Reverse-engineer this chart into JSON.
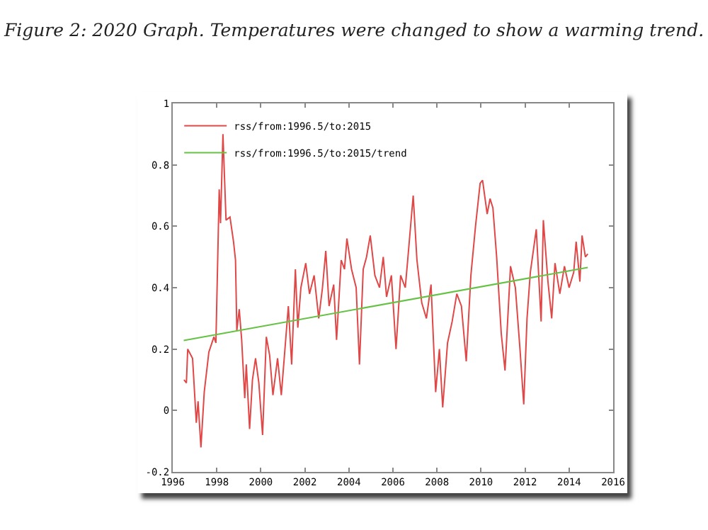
{
  "chart_data": {
    "type": "line",
    "title": "Figure 2: 2020 Graph. Temperatures were changed to show a warming trend.",
    "xlim": [
      1996,
      2016
    ],
    "xticks": [
      1996,
      1998,
      2000,
      2002,
      2004,
      2006,
      2008,
      2010,
      2012,
      2014,
      2016
    ],
    "ylim": [
      -0.2,
      1
    ],
    "yticks": [
      -0.2,
      0,
      0.2,
      0.4,
      0.6,
      0.8,
      1
    ],
    "grid": false,
    "legend": "top left",
    "series": [
      {
        "name": "rss/from:1996.5/to:2015",
        "color": "#e04848",
        "x": [
          1996.51,
          1996.62,
          1996.68,
          1996.9,
          1997.07,
          1997.15,
          1997.28,
          1997.43,
          1997.64,
          1997.87,
          1997.96,
          1998.11,
          1998.17,
          1998.28,
          1998.42,
          1998.6,
          1998.76,
          1998.85,
          1998.91,
          1999.02,
          1999.13,
          1999.27,
          1999.34,
          1999.49,
          1999.62,
          1999.76,
          1999.91,
          2000.08,
          2000.25,
          2000.4,
          2000.55,
          2000.76,
          2000.93,
          2001.25,
          2001.4,
          2001.57,
          2001.68,
          2001.82,
          2002.04,
          2002.21,
          2002.42,
          2002.63,
          2002.8,
          2002.95,
          2003.1,
          2003.31,
          2003.44,
          2003.65,
          2003.8,
          2003.91,
          2004.12,
          2004.33,
          2004.48,
          2004.65,
          2004.8,
          2004.97,
          2005.18,
          2005.39,
          2005.56,
          2005.71,
          2005.93,
          2006.14,
          2006.35,
          2006.56,
          2006.67,
          2006.92,
          2007.09,
          2007.31,
          2007.52,
          2007.73,
          2007.94,
          2008.11,
          2008.26,
          2008.48,
          2008.69,
          2008.9,
          2009.11,
          2009.33,
          2009.54,
          2009.75,
          2009.96,
          2010.07,
          2010.28,
          2010.41,
          2010.54,
          2010.71,
          2010.92,
          2011.09,
          2011.34,
          2011.56,
          2011.77,
          2011.94,
          2012.09,
          2012.24,
          2012.51,
          2012.73,
          2012.83,
          2013.04,
          2013.21,
          2013.36,
          2013.58,
          2013.79,
          2014.0,
          2014.21,
          2014.32,
          2014.49,
          2014.59,
          2014.74,
          2014.85
        ],
        "values": [
          0.1,
          0.09,
          0.2,
          0.17,
          -0.04,
          0.03,
          -0.12,
          0.06,
          0.19,
          0.24,
          0.22,
          0.72,
          0.61,
          0.9,
          0.62,
          0.63,
          0.55,
          0.49,
          0.26,
          0.33,
          0.23,
          0.04,
          0.15,
          -0.06,
          0.1,
          0.17,
          0.09,
          -0.08,
          0.24,
          0.18,
          0.05,
          0.17,
          0.05,
          0.34,
          0.15,
          0.46,
          0.27,
          0.4,
          0.48,
          0.38,
          0.44,
          0.3,
          0.4,
          0.52,
          0.34,
          0.41,
          0.23,
          0.49,
          0.46,
          0.56,
          0.46,
          0.4,
          0.15,
          0.46,
          0.5,
          0.57,
          0.44,
          0.4,
          0.5,
          0.37,
          0.44,
          0.2,
          0.44,
          0.4,
          0.49,
          0.7,
          0.49,
          0.35,
          0.3,
          0.41,
          0.06,
          0.2,
          0.01,
          0.22,
          0.29,
          0.38,
          0.34,
          0.16,
          0.44,
          0.6,
          0.74,
          0.75,
          0.64,
          0.69,
          0.66,
          0.5,
          0.25,
          0.13,
          0.47,
          0.4,
          0.2,
          0.02,
          0.3,
          0.45,
          0.59,
          0.29,
          0.62,
          0.42,
          0.3,
          0.48,
          0.38,
          0.47,
          0.4,
          0.45,
          0.55,
          0.42,
          0.57,
          0.5,
          0.51
        ]
      },
      {
        "name": "rss/from:1996.5/to:2015/trend",
        "color": "#66c244",
        "x": [
          1996.5,
          2014.85
        ],
        "values": [
          0.228,
          0.466
        ]
      }
    ]
  }
}
